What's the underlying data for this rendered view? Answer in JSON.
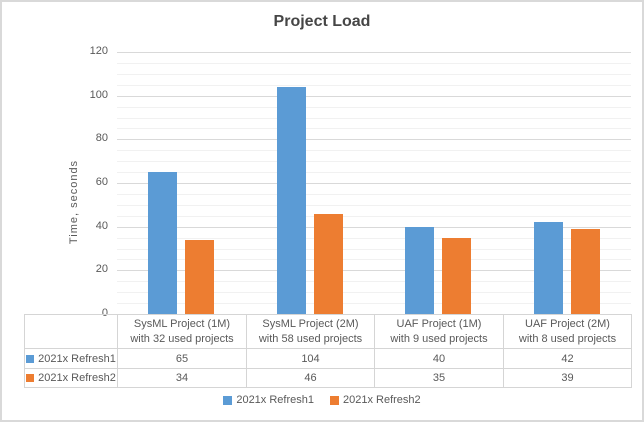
{
  "chart_data": {
    "type": "bar",
    "title": "Project Load",
    "xlabel": "",
    "ylabel": "Time, seconds",
    "ylim": [
      0,
      120
    ],
    "ytick_step": 20,
    "minor_gridline_step": 5,
    "grid": true,
    "legend_position": "bottom",
    "yticks": [
      0,
      20,
      40,
      60,
      80,
      100,
      120
    ],
    "categories": [
      "SysML Project (1M) with 32 used projects",
      "SysML Project (2M) with 58 used projects",
      "UAF Project (1M) with 9 used projects",
      "UAF Project (2M) with 8 used projects"
    ],
    "category_label_lines": [
      [
        "SysML Project (1M)",
        "with 32 used projects"
      ],
      [
        "SysML Project (2M)",
        "with 58 used projects"
      ],
      [
        "UAF Project (1M)",
        "with 9 used projects"
      ],
      [
        "UAF Project (2M)",
        "with 8 used projects"
      ]
    ],
    "series": [
      {
        "name": "2021x Refresh1",
        "color": "#5b9bd5",
        "values": [
          65,
          104,
          40,
          42
        ]
      },
      {
        "name": "2021x Refresh2",
        "color": "#ed7d31",
        "values": [
          34,
          46,
          35,
          39
        ]
      }
    ],
    "data_table_shown": true
  },
  "colors": {
    "series1": "#5b9bd5",
    "series2": "#ed7d31",
    "text": "#595959",
    "title_text": "#464646",
    "gridline_major": "#d9d9d9",
    "gridline_minor": "#f1f1f1",
    "table_border": "#d5d5d5",
    "frame_border": "#d9d9d9",
    "background": "#ffffff"
  }
}
